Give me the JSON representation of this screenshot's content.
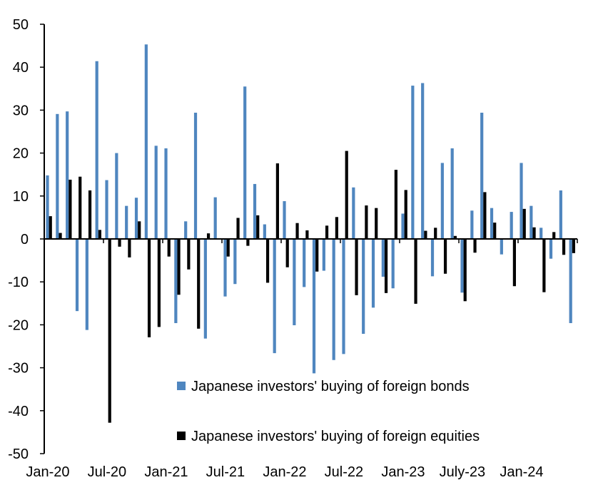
{
  "chart_data": {
    "type": "bar",
    "title": "",
    "xlabel": "",
    "ylabel": "",
    "ylim": [
      -50,
      50
    ],
    "yticks": [
      50,
      40,
      30,
      20,
      10,
      0,
      -10,
      -20,
      -30,
      -40,
      -50
    ],
    "grid": false,
    "legend_position": "bottom-center-inside",
    "x_tick_labels": [
      "Jan-20",
      "Jul-20",
      "Jan-21",
      "Jul-21",
      "Jan-22",
      "Jul-22",
      "Jan-23",
      "July-23",
      "Jan-24"
    ],
    "categories": [
      "Jan-20",
      "Feb-20",
      "Mar-20",
      "Apr-20",
      "May-20",
      "Jun-20",
      "Jul-20",
      "Aug-20",
      "Sep-20",
      "Oct-20",
      "Nov-20",
      "Dec-20",
      "Jan-21",
      "Feb-21",
      "Mar-21",
      "Apr-21",
      "May-21",
      "Jun-21",
      "Jul-21",
      "Aug-21",
      "Sep-21",
      "Oct-21",
      "Nov-21",
      "Dec-21",
      "Jan-22",
      "Feb-22",
      "Mar-22",
      "Apr-22",
      "May-22",
      "Jun-22",
      "Jul-22",
      "Aug-22",
      "Sep-22",
      "Oct-22",
      "Nov-22",
      "Dec-22",
      "Jan-23",
      "Feb-23",
      "Mar-23",
      "Apr-23",
      "May-23",
      "Jun-23",
      "Jul-23",
      "Aug-23",
      "Sep-23",
      "Oct-23",
      "Nov-23",
      "Dec-23",
      "Jan-24",
      "Feb-24",
      "Mar-24",
      "Apr-24",
      "May-24",
      "Jun-24"
    ],
    "series": [
      {
        "name": "Japanese investors' buying of foreign bonds",
        "color": "#4f86bf",
        "values": [
          14.8,
          29.1,
          29.7,
          -16.8,
          -21.2,
          41.4,
          13.7,
          20.0,
          7.7,
          9.6,
          45.3,
          21.7,
          21.1,
          -19.6,
          4.1,
          29.4,
          -23.2,
          9.7,
          -13.4,
          -10.5,
          35.5,
          12.8,
          3.4,
          -26.6,
          8.8,
          -20.1,
          -11.2,
          -31.3,
          -7.4,
          -28.2,
          -26.8,
          12.0,
          -22.1,
          -16.0,
          -8.8,
          -11.5,
          5.9,
          35.7,
          36.3,
          -8.7,
          17.7,
          21.1,
          -12.5,
          6.6,
          29.4,
          7.2,
          -3.6,
          6.3,
          17.7,
          7.7,
          2.6,
          -4.6,
          11.3,
          -19.6
        ]
      },
      {
        "name": "Japanese investors' buying of foreign equities",
        "color": "#000000",
        "values": [
          5.3,
          1.4,
          13.8,
          14.5,
          11.3,
          2.1,
          -42.8,
          -1.8,
          -4.3,
          4.1,
          -22.9,
          -20.5,
          -4.1,
          -13.0,
          -7.1,
          -20.9,
          1.3,
          0.0,
          -4.1,
          4.9,
          -1.6,
          5.5,
          -10.2,
          17.6,
          -6.6,
          3.7,
          2.0,
          -7.6,
          3.1,
          5.1,
          20.5,
          -13.1,
          7.8,
          7.2,
          -12.6,
          16.1,
          11.4,
          -15.1,
          1.9,
          2.6,
          -8.1,
          0.7,
          -14.5,
          -3.2,
          10.9,
          3.8,
          0.0,
          -11.0,
          7.0,
          2.7,
          -12.4,
          1.6,
          -3.7,
          -3.3
        ]
      }
    ]
  }
}
